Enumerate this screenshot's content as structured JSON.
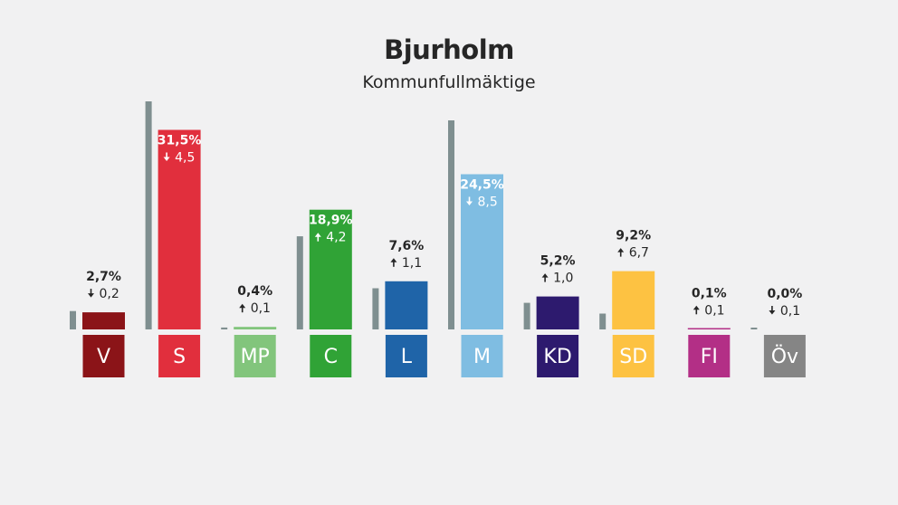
{
  "title": "Bjurholm",
  "subtitle": "Kommunfullmäktige",
  "chart_data": {
    "type": "bar",
    "title": "Bjurholm",
    "subtitle": "Kommunfullmäktige",
    "categories": [
      "V",
      "S",
      "MP",
      "C",
      "L",
      "M",
      "KD",
      "SD",
      "FI",
      "Öv"
    ],
    "series": [
      {
        "values": [
          2.7,
          31.5,
          0.4,
          18.9,
          7.6,
          24.5,
          5.2,
          9.2,
          0.1,
          0.0
        ]
      },
      {
        "values": [
          2.9,
          36.0,
          0.3,
          14.7,
          6.5,
          33.0,
          4.2,
          2.5,
          0.0,
          0.1
        ]
      }
    ],
    "value_labels": [
      "2,7%",
      "31,5%",
      "0,4%",
      "18,9%",
      "7,6%",
      "24,5%",
      "5,2%",
      "9,2%",
      "0,1%",
      "0,0%"
    ],
    "change_labels": [
      "0,2",
      "4,5",
      "0,1",
      "4,2",
      "1,1",
      "8,5",
      "1,0",
      "6,7",
      "0,1",
      "0,1"
    ],
    "change_direction": [
      "down",
      "down",
      "up",
      "up",
      "up",
      "down",
      "up",
      "up",
      "up",
      "down"
    ],
    "colors": [
      "#8b1418",
      "#e12f3d",
      "#82c57c",
      "#30a336",
      "#1f64a8",
      "#7fbde2",
      "#2d1a6e",
      "#fdc242",
      "#b32f86",
      "#858585"
    ],
    "previous_color": "#7f8f90",
    "ylim": [
      0,
      36
    ],
    "grid": false,
    "legend": "none"
  }
}
